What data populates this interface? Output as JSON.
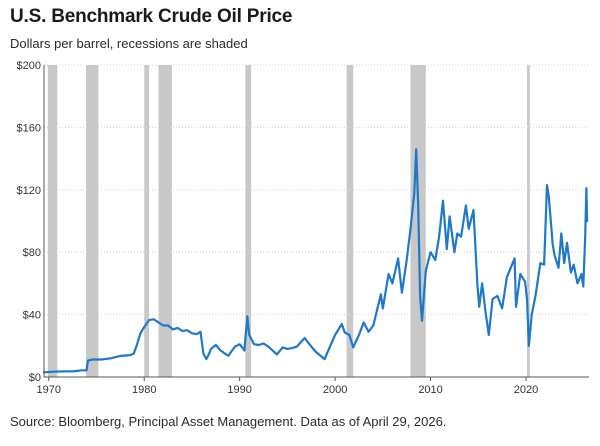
{
  "title": "U.S. Benchmark Crude Oil Price",
  "subtitle": "Dollars per barrel, recessions are shaded",
  "source": "Source: Bloomberg, Principal Asset Management. Data as of April 29, 2026.",
  "colors": {
    "line": "#1f78c8",
    "recession": "#c8c8c8",
    "grid": "#d0d0d0",
    "axis": "#555555"
  },
  "chart_data": {
    "type": "line",
    "title": "U.S. Benchmark Crude Oil Price",
    "xlabel": "",
    "ylabel": "",
    "xlim": [
      1969.5,
      2026.6
    ],
    "ylim": [
      0,
      200
    ],
    "x_ticks": [
      1970,
      1980,
      1990,
      2000,
      2010,
      2020
    ],
    "x_tick_labels": [
      "1970",
      "1980",
      "1990",
      "2000",
      "2010",
      "2020"
    ],
    "y_ticks": [
      0,
      40,
      80,
      120,
      160,
      200
    ],
    "y_tick_labels": [
      "$0",
      "$40",
      "$80",
      "$120",
      "$160",
      "$200"
    ],
    "grid": "horizontal",
    "legend": "none",
    "recessions": [
      {
        "start": 1969.9,
        "end": 1970.9
      },
      {
        "start": 1973.9,
        "end": 1975.2
      },
      {
        "start": 1980.0,
        "end": 1980.5
      },
      {
        "start": 1981.5,
        "end": 1982.9
      },
      {
        "start": 1990.6,
        "end": 1991.2
      },
      {
        "start": 2001.2,
        "end": 2001.9
      },
      {
        "start": 2007.9,
        "end": 2009.5
      },
      {
        "start": 2020.1,
        "end": 2020.4
      }
    ],
    "series": [
      {
        "values": [
          [
            1969.5,
            3.0
          ],
          [
            1970.5,
            3.4
          ],
          [
            1971.5,
            3.6
          ],
          [
            1972.5,
            3.6
          ],
          [
            1973.5,
            4.3
          ],
          [
            1973.95,
            4.3
          ],
          [
            1974.1,
            10.5
          ],
          [
            1974.6,
            11.2
          ],
          [
            1975.5,
            11.2
          ],
          [
            1976.5,
            12.0
          ],
          [
            1977.5,
            13.5
          ],
          [
            1978.5,
            14.0
          ],
          [
            1978.9,
            15.0
          ],
          [
            1979.2,
            20.0
          ],
          [
            1979.6,
            28.0
          ],
          [
            1980.0,
            32.0
          ],
          [
            1980.5,
            36.5
          ],
          [
            1981.0,
            37.0
          ],
          [
            1981.5,
            35.0
          ],
          [
            1982.0,
            33.0
          ],
          [
            1982.5,
            33.0
          ],
          [
            1983.0,
            30.5
          ],
          [
            1983.5,
            31.5
          ],
          [
            1984.0,
            29.5
          ],
          [
            1984.5,
            30.0
          ],
          [
            1985.0,
            28.0
          ],
          [
            1985.5,
            27.5
          ],
          [
            1985.9,
            29.0
          ],
          [
            1986.2,
            15.0
          ],
          [
            1986.5,
            11.5
          ],
          [
            1986.8,
            15.0
          ],
          [
            1987.0,
            18.0
          ],
          [
            1987.5,
            20.5
          ],
          [
            1988.0,
            17.0
          ],
          [
            1988.8,
            13.5
          ],
          [
            1989.5,
            19.5
          ],
          [
            1990.0,
            21.0
          ],
          [
            1990.5,
            17.0
          ],
          [
            1990.8,
            39.0
          ],
          [
            1991.0,
            27.0
          ],
          [
            1991.5,
            21.0
          ],
          [
            1992.0,
            20.5
          ],
          [
            1992.5,
            21.5
          ],
          [
            1993.0,
            19.5
          ],
          [
            1993.9,
            14.5
          ],
          [
            1994.5,
            19.0
          ],
          [
            1995.0,
            18.0
          ],
          [
            1995.5,
            18.5
          ],
          [
            1996.0,
            19.5
          ],
          [
            1996.8,
            25.0
          ],
          [
            1997.5,
            19.5
          ],
          [
            1998.0,
            16.0
          ],
          [
            1998.9,
            11.5
          ],
          [
            1999.5,
            20.0
          ],
          [
            2000.0,
            27.0
          ],
          [
            2000.7,
            34.0
          ],
          [
            2001.0,
            28.5
          ],
          [
            2001.5,
            27.0
          ],
          [
            2001.9,
            19.0
          ],
          [
            2002.5,
            27.0
          ],
          [
            2003.0,
            35.0
          ],
          [
            2003.5,
            29.0
          ],
          [
            2004.0,
            33.0
          ],
          [
            2004.8,
            53.0
          ],
          [
            2005.0,
            44.0
          ],
          [
            2005.6,
            66.0
          ],
          [
            2006.0,
            60.0
          ],
          [
            2006.6,
            76.0
          ],
          [
            2007.0,
            54.0
          ],
          [
            2007.5,
            75.0
          ],
          [
            2007.9,
            95.0
          ],
          [
            2008.3,
            118.0
          ],
          [
            2008.5,
            146.0
          ],
          [
            2008.7,
            110.0
          ],
          [
            2008.9,
            52.0
          ],
          [
            2009.1,
            36.0
          ],
          [
            2009.5,
            68.0
          ],
          [
            2010.0,
            80.0
          ],
          [
            2010.5,
            75.0
          ],
          [
            2010.9,
            90.0
          ],
          [
            2011.3,
            113.0
          ],
          [
            2011.7,
            82.0
          ],
          [
            2012.0,
            103.0
          ],
          [
            2012.5,
            80.0
          ],
          [
            2012.8,
            92.0
          ],
          [
            2013.2,
            90.0
          ],
          [
            2013.7,
            110.0
          ],
          [
            2014.0,
            95.0
          ],
          [
            2014.5,
            107.0
          ],
          [
            2014.9,
            60.0
          ],
          [
            2015.1,
            45.0
          ],
          [
            2015.4,
            60.0
          ],
          [
            2015.8,
            40.0
          ],
          [
            2016.1,
            27.0
          ],
          [
            2016.5,
            50.0
          ],
          [
            2017.0,
            52.0
          ],
          [
            2017.5,
            44.0
          ],
          [
            2018.0,
            64.0
          ],
          [
            2018.8,
            76.0
          ],
          [
            2018.95,
            45.0
          ],
          [
            2019.4,
            66.0
          ],
          [
            2019.9,
            61.0
          ],
          [
            2020.1,
            50.0
          ],
          [
            2020.3,
            20.0
          ],
          [
            2020.6,
            40.0
          ],
          [
            2021.0,
            52.0
          ],
          [
            2021.5,
            73.0
          ],
          [
            2021.9,
            72.0
          ],
          [
            2022.2,
            123.0
          ],
          [
            2022.4,
            115.0
          ],
          [
            2022.8,
            85.0
          ],
          [
            2023.0,
            78.0
          ],
          [
            2023.4,
            70.0
          ],
          [
            2023.7,
            92.0
          ],
          [
            2024.0,
            73.0
          ],
          [
            2024.3,
            86.0
          ],
          [
            2024.7,
            67.0
          ],
          [
            2025.0,
            72.0
          ],
          [
            2025.4,
            60.0
          ],
          [
            2025.8,
            66.0
          ],
          [
            2026.0,
            58.0
          ],
          [
            2026.2,
            90.0
          ],
          [
            2026.33,
            121.0
          ],
          [
            2026.4,
            100.0
          ]
        ]
      }
    ]
  }
}
